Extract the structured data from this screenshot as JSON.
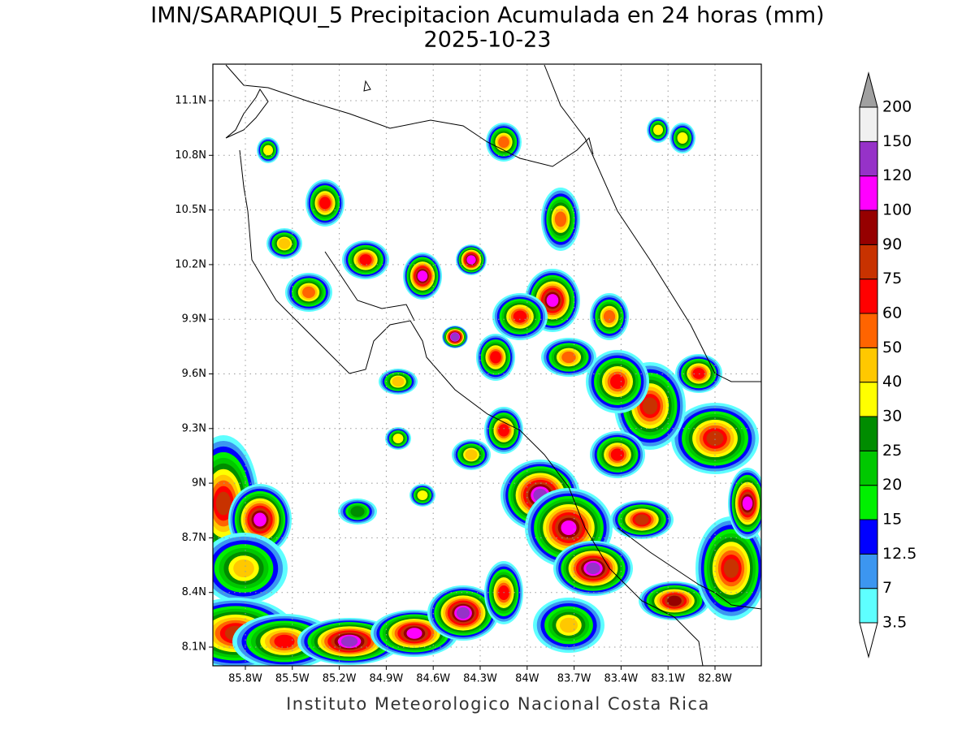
{
  "title": "IMN/SARAPIQUI_5 Precipitacion Acumulada en 24 horas (mm)",
  "subtitle": "2025-10-23",
  "map": {
    "lat_ticks": [
      "11.1N",
      "10.8N",
      "10.5N",
      "10.2N",
      "9.9N",
      "9.6N",
      "9.3N",
      "9N",
      "8.7N",
      "8.4N",
      "8.1N"
    ],
    "lon_ticks": [
      "85.8W",
      "85.5W",
      "85.2W",
      "84.9W",
      "84.6W",
      "84.3W",
      "84W",
      "83.7W",
      "83.4W",
      "83.1W",
      "82.8W"
    ]
  },
  "colorbar": {
    "under_color": "#ffffff",
    "over_color": "#a0a0a0",
    "levels": [
      {
        "label": "3.5",
        "color": "#5effff"
      },
      {
        "label": "7",
        "color": "#3c96f0"
      },
      {
        "label": "12.5",
        "color": "#0000ff"
      },
      {
        "label": "15",
        "color": "#00f000"
      },
      {
        "label": "20",
        "color": "#00c800"
      },
      {
        "label": "25",
        "color": "#008c00"
      },
      {
        "label": "30",
        "color": "#ffff00"
      },
      {
        "label": "40",
        "color": "#ffc800"
      },
      {
        "label": "50",
        "color": "#ff6400"
      },
      {
        "label": "60",
        "color": "#ff0000"
      },
      {
        "label": "75",
        "color": "#c83200"
      },
      {
        "label": "90",
        "color": "#960000"
      },
      {
        "label": "100",
        "color": "#ff00ff"
      },
      {
        "label": "120",
        "color": "#9632c8"
      },
      {
        "label": "150",
        "color": "#f0f0f0"
      },
      {
        "label": "200",
        "color": "#a0a0a0"
      }
    ]
  },
  "footer": "Instituto Meteorologico Nacional Costa Rica"
}
